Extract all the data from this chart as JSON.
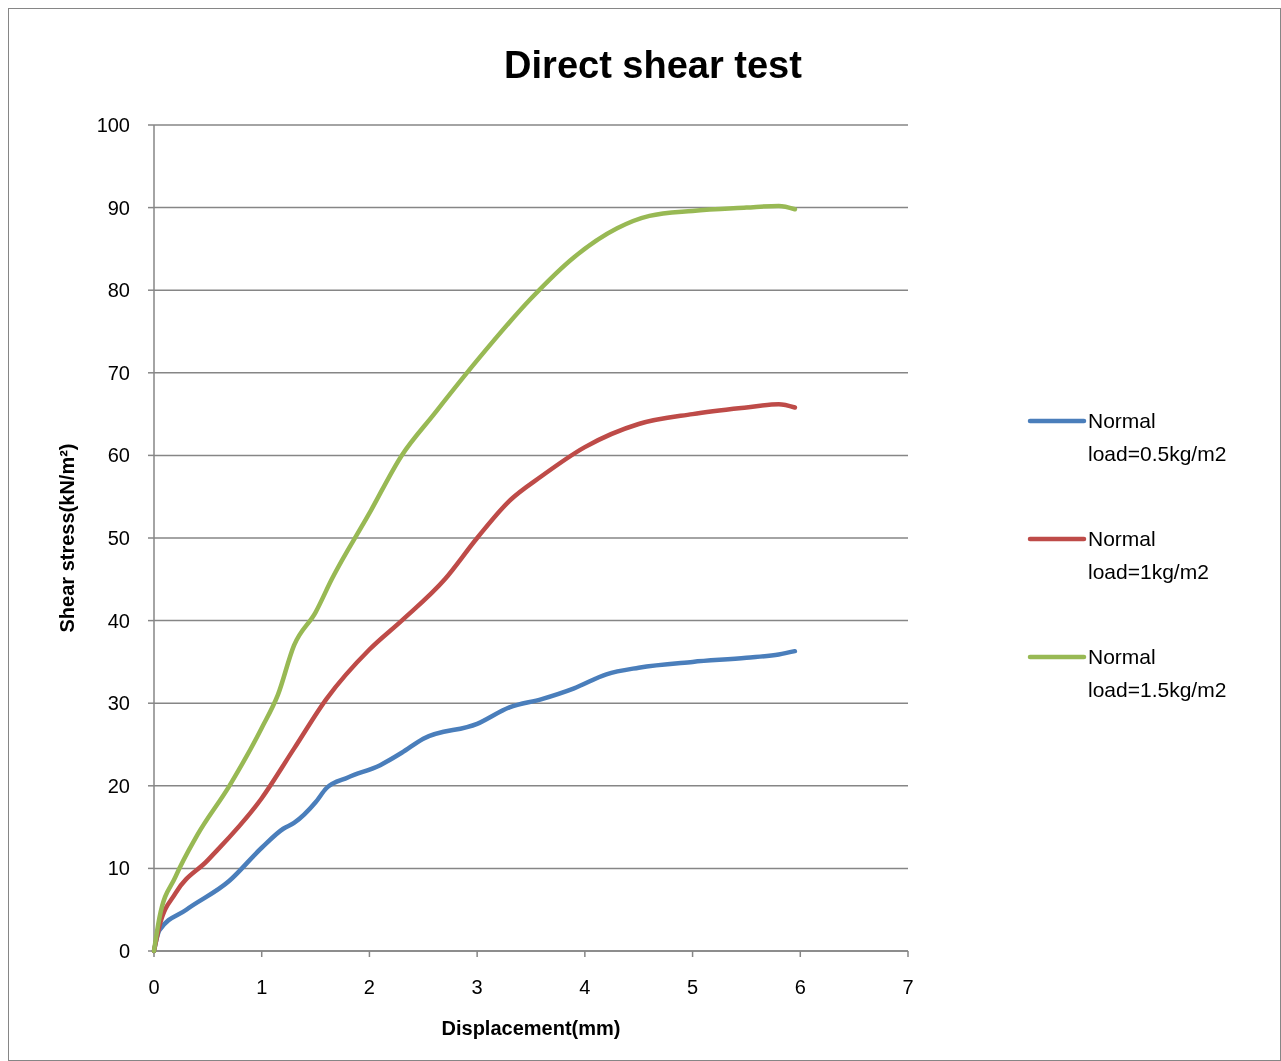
{
  "chart_data": {
    "type": "line",
    "title": "Direct shear test",
    "xlabel": "Displacement(mm)",
    "ylabel": "Shear stress(kN/m²)",
    "xlim": [
      0,
      7
    ],
    "xticks": [
      0,
      1,
      2,
      3,
      4,
      5,
      6,
      7
    ],
    "ylim": [
      0,
      100
    ],
    "yticks": [
      0,
      10,
      20,
      30,
      40,
      50,
      60,
      70,
      80,
      90,
      100
    ],
    "grid": "y",
    "legend": "right",
    "marker": "none",
    "line_style": "solid",
    "series": [
      {
        "name": "Normal load=0.5kg/m2",
        "color": "#4a7ebb",
        "x": [
          0,
          0.05,
          0.3,
          0.7,
          1.0,
          1.2,
          1.3,
          1.5,
          1.6,
          1.8,
          2.1,
          2.3,
          2.5,
          3.0,
          3.3,
          3.6,
          3.9,
          4.2,
          4.5,
          5,
          5.5,
          5.8,
          5.95
        ],
        "values": [
          0,
          2.5,
          5,
          8.5,
          12.5,
          14.8,
          15.5,
          18,
          19.7,
          21,
          22.5,
          24,
          25.7,
          27.5,
          29.5,
          30.5,
          31.8,
          33.5,
          34.3,
          35,
          35.5,
          35.9,
          36.3
        ]
      },
      {
        "name": "Normal load=1kg/m2",
        "color": "#be4b48",
        "x": [
          0,
          0.05,
          0.2,
          0.5,
          1.0,
          1.3,
          1.6,
          2.0,
          2.3,
          2.7,
          3.0,
          3.3,
          3.6,
          4.0,
          4.5,
          5,
          5.5,
          5.8,
          5.95
        ],
        "values": [
          0,
          3,
          7,
          11,
          18.5,
          24.5,
          30.5,
          36.5,
          40,
          45,
          50,
          54.5,
          57.5,
          61,
          63.8,
          65,
          65.8,
          66.2,
          65.8
        ]
      },
      {
        "name": "Normal load=1.5kg/m2",
        "color": "#98b954",
        "x": [
          0,
          0.05,
          0.2,
          0.4,
          0.7,
          1.0,
          1.15,
          1.3,
          1.5,
          1.65,
          2.0,
          2.3,
          2.6,
          3.0,
          3.5,
          3.9,
          4.3,
          4.6,
          5,
          5.5,
          5.8,
          5.95
        ],
        "values": [
          0,
          4,
          9,
          14,
          20,
          27,
          31,
          37,
          41,
          45,
          53,
          60,
          65,
          71.5,
          79,
          84,
          87.5,
          89,
          89.6,
          90,
          90.2,
          89.8
        ]
      }
    ]
  }
}
